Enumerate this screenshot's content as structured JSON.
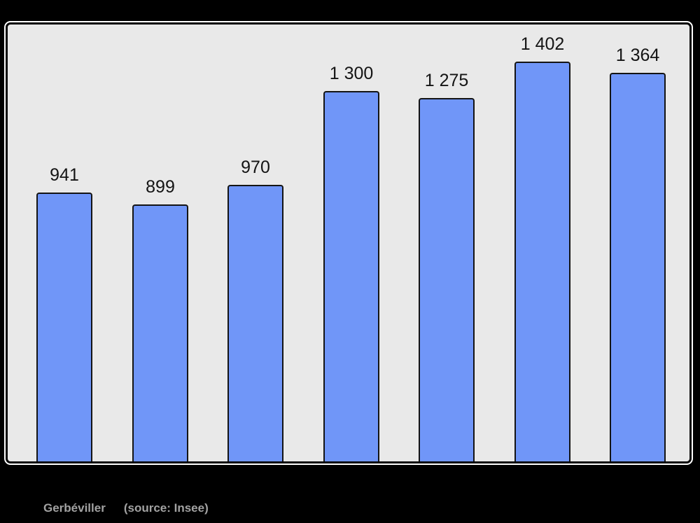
{
  "chart_data": {
    "type": "bar",
    "values": [
      941,
      899,
      970,
      1300,
      1275,
      1402,
      1364
    ],
    "value_labels": [
      "941",
      "899",
      "970",
      "1 300",
      "1 275",
      "1 402",
      "1 364"
    ],
    "title": "",
    "xlabel": "",
    "ylabel": "",
    "ylim": [
      0,
      1540
    ],
    "grid": false,
    "legend": false,
    "axes_visible": false
  },
  "caption": {
    "place": "Gerbéviller",
    "source": "(source: Insee)"
  },
  "colors": {
    "page_bg": "#000000",
    "panel_bg": "#e9e9e9",
    "panel_border": "#050505",
    "panel_outline": "#ffffff",
    "bar_fill": "#7096f8",
    "bar_border": "#141414",
    "label_color": "#141414",
    "caption_color": "#a2a2a2"
  }
}
